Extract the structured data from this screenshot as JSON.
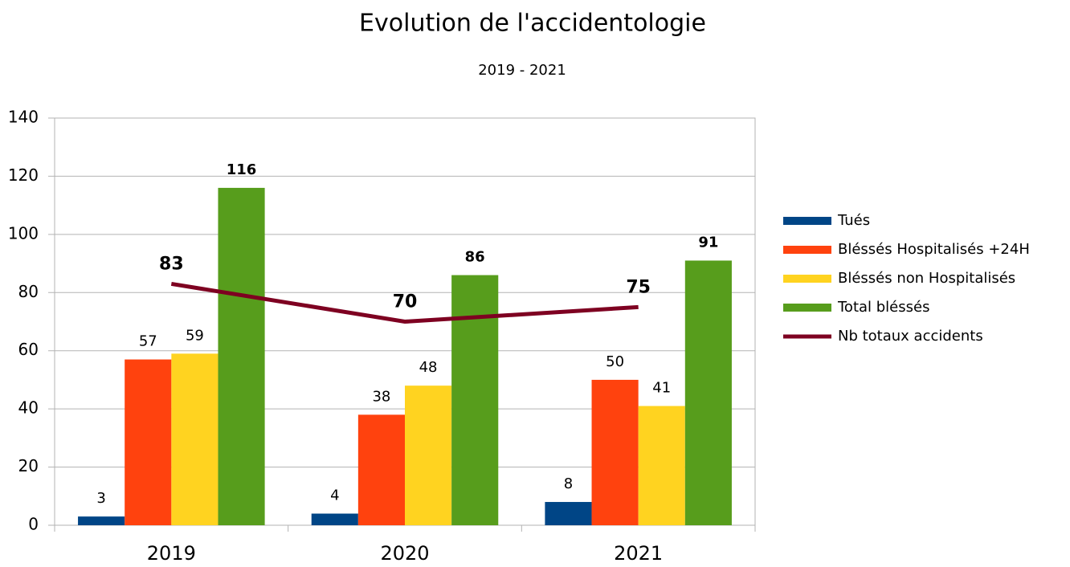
{
  "chart_data": {
    "type": "bar",
    "title": "Evolution de l'accidentologie",
    "subtitle": "2019 - 2021",
    "categories": [
      "2019",
      "2020",
      "2021"
    ],
    "series": [
      {
        "name": "Tués",
        "color": "#004586",
        "values": [
          3,
          4,
          8
        ]
      },
      {
        "name": "Bléssés Hospitalisés +24H",
        "color": "#ff420e",
        "values": [
          57,
          38,
          50
        ]
      },
      {
        "name": "Bléssés non Hospitalisés",
        "color": "#ffd320",
        "values": [
          59,
          48,
          41
        ]
      },
      {
        "name": "Total bléssés",
        "color": "#579d1c",
        "values": [
          116,
          86,
          91
        ]
      },
      {
        "name": "Nb totaux accidents",
        "color": "#7e0021",
        "type": "line",
        "values": [
          83,
          70,
          75
        ]
      }
    ],
    "ylim": [
      0,
      140
    ],
    "yticks": [
      0,
      20,
      40,
      60,
      80,
      100,
      120,
      140
    ],
    "grid": true,
    "legend": "right"
  }
}
